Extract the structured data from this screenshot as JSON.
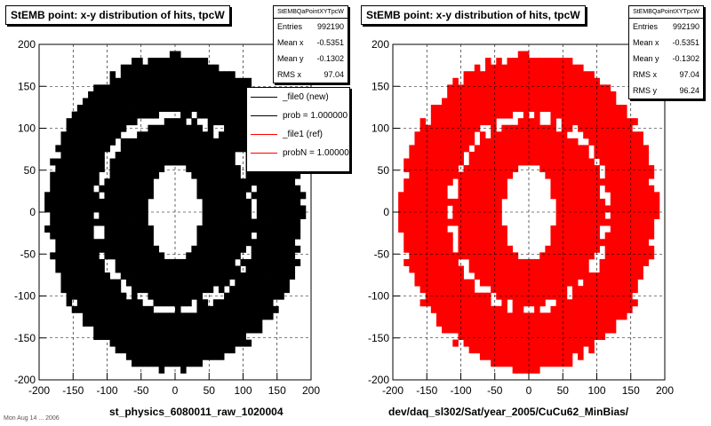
{
  "footer": "Mon Aug 14 ... 2006",
  "chart_data": [
    {
      "type": "heatmap",
      "title": "StEMB point: x-y distribution of hits, tpcW",
      "xlabel": "st_physics_6080011_raw_1020004",
      "ylabel": "",
      "xlim": [
        -200,
        200
      ],
      "ylim": [
        -200,
        200
      ],
      "xticks": [
        -200,
        -150,
        -100,
        -50,
        0,
        50,
        100,
        150,
        200
      ],
      "yticks": [
        -200,
        -150,
        -100,
        -50,
        0,
        50,
        100,
        150,
        200
      ],
      "grid": true,
      "color": "#000000",
      "distribution": {
        "outer_radius_x": 190,
        "outer_radius_y": 190,
        "inner_hole_radius_x": 38,
        "inner_hole_radius_y": 55,
        "sparse_ring_radius": 115
      },
      "stats": {
        "name": "StEMBQaPointXYTpcW",
        "rows": [
          {
            "label": "Entries",
            "value": "992190"
          },
          {
            "label": "Mean x",
            "value": "-0.5351"
          },
          {
            "label": "Mean y",
            "value": "-0.1302"
          },
          {
            "label": "RMS x",
            "value": "97.04"
          }
        ]
      },
      "legend": [
        {
          "label": "_file0 (new)",
          "color": "#000000"
        },
        {
          "label": "prob = 1.000000",
          "color": "#000000"
        },
        {
          "label": "_file1 (ref)",
          "color": "#ff0000"
        },
        {
          "label": "probN = 1.000000",
          "color": "#ff0000"
        }
      ]
    },
    {
      "type": "heatmap",
      "title": "StEMB point: x-y distribution of hits, tpcW",
      "xlabel": "dev/daq_sl302/Sat/year_2005/CuCu62_MinBias/",
      "ylabel": "",
      "xlim": [
        -200,
        200
      ],
      "ylim": [
        -200,
        200
      ],
      "xticks": [
        -200,
        -150,
        -100,
        -50,
        0,
        50,
        100,
        150,
        200
      ],
      "yticks": [
        -200,
        -150,
        -100,
        -50,
        0,
        50,
        100,
        150,
        200
      ],
      "grid": true,
      "color": "#ff0000",
      "distribution": {
        "outer_radius_x": 190,
        "outer_radius_y": 190,
        "inner_hole_radius_x": 38,
        "inner_hole_radius_y": 55,
        "sparse_ring_radius": 115
      },
      "stats": {
        "name": "StEMBQaPointXYTpcW",
        "rows": [
          {
            "label": "Entries",
            "value": "992190"
          },
          {
            "label": "Mean x",
            "value": "-0.5351"
          },
          {
            "label": "Mean y",
            "value": "-0.1302"
          },
          {
            "label": "RMS x",
            "value": "97.04"
          },
          {
            "label": "RMS y",
            "value": "96.24"
          }
        ]
      }
    }
  ]
}
